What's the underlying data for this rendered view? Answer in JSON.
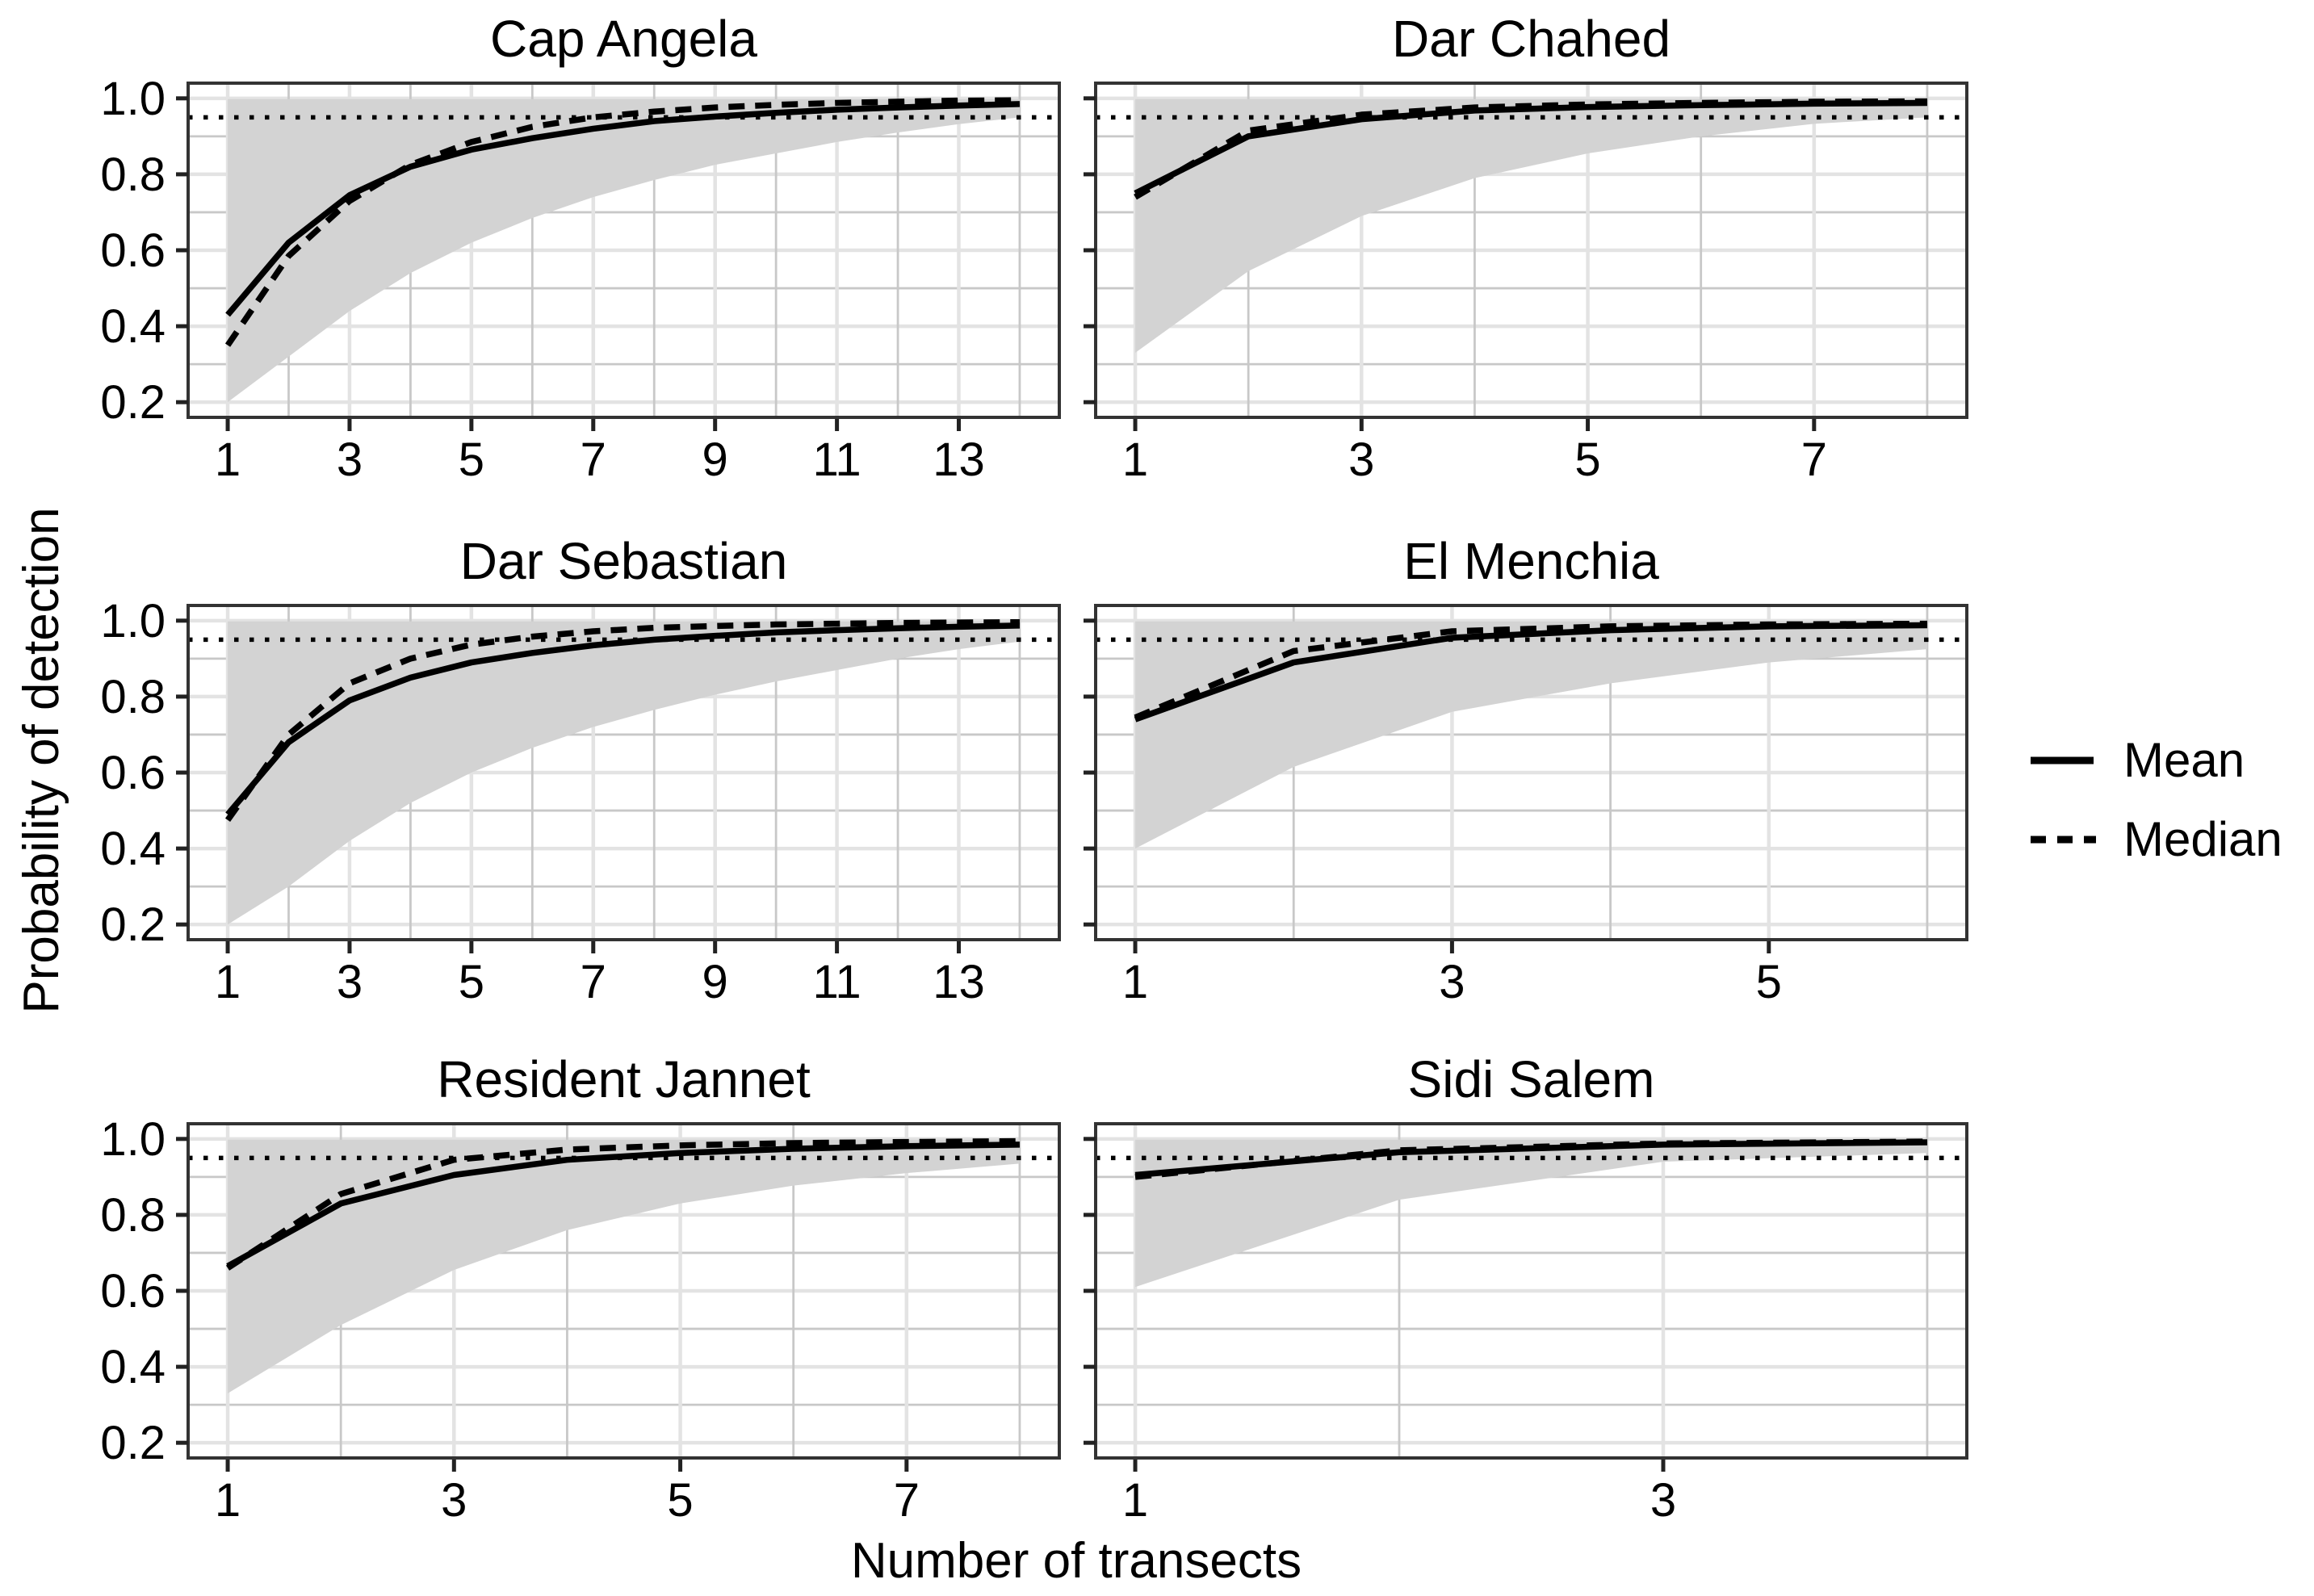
{
  "figure": {
    "y_axis_label": "Probability of detection",
    "x_axis_label": "Number of transects"
  },
  "chart_data": {
    "type": "line",
    "title": "",
    "xlabel": "Number of transects",
    "ylabel": "Probability of detection",
    "ylim": [
      0.16,
      1.04
    ],
    "y_ticks": [
      0.2,
      0.4,
      0.6,
      0.8,
      1.0
    ],
    "y_tick_labels": [
      "0.2",
      "0.4",
      "0.6",
      "0.8",
      "1.0"
    ],
    "grid": "on",
    "reference_line_y": 0.95,
    "reference_line_style": "dotted",
    "legend_position": "right",
    "legend": [
      {
        "label": "Mean",
        "style": "solid"
      },
      {
        "label": "Median",
        "style": "dashed"
      }
    ],
    "ribbon_meaning": "95% interval band",
    "colors": {
      "line": "#000000",
      "ribbon": "#d3d3d3",
      "grid_major": "#e3e3e3",
      "grid_minor": "#c8c8c8",
      "panel_border": "#333333",
      "panel_bg": "#ffffff",
      "text": "#000000"
    },
    "panels": [
      {
        "title": "Cap Angela",
        "x_max": 14,
        "x_ticks": [
          1,
          3,
          5,
          7,
          9,
          11,
          13
        ],
        "x": [
          1,
          2,
          3,
          4,
          5,
          6,
          7,
          8,
          9,
          10,
          11,
          12,
          13,
          14
        ],
        "mean": [
          0.43,
          0.62,
          0.745,
          0.82,
          0.865,
          0.895,
          0.92,
          0.94,
          0.952,
          0.962,
          0.97,
          0.976,
          0.981,
          0.985
        ],
        "median": [
          0.35,
          0.585,
          0.73,
          0.825,
          0.885,
          0.925,
          0.95,
          0.965,
          0.976,
          0.983,
          0.988,
          0.991,
          0.994,
          0.995
        ],
        "lower": [
          0.2,
          0.32,
          0.44,
          0.54,
          0.62,
          0.685,
          0.74,
          0.785,
          0.825,
          0.855,
          0.885,
          0.91,
          0.932,
          0.95
        ],
        "upper": 0.998
      },
      {
        "title": "Dar Chahed",
        "x_max": 8,
        "x_ticks": [
          1,
          3,
          5,
          7
        ],
        "x": [
          1,
          2,
          3,
          4,
          5,
          6,
          7,
          8
        ],
        "mean": [
          0.75,
          0.9,
          0.945,
          0.968,
          0.977,
          0.982,
          0.986,
          0.988
        ],
        "median": [
          0.74,
          0.915,
          0.957,
          0.976,
          0.984,
          0.988,
          0.991,
          0.992
        ],
        "lower": [
          0.33,
          0.545,
          0.69,
          0.79,
          0.855,
          0.9,
          0.933,
          0.95
        ],
        "upper": 0.998
      },
      {
        "title": "Dar Sebastian",
        "x_max": 14,
        "x_ticks": [
          1,
          3,
          5,
          7,
          9,
          11,
          13
        ],
        "x": [
          1,
          2,
          3,
          4,
          5,
          6,
          7,
          8,
          9,
          10,
          11,
          12,
          13,
          14
        ],
        "mean": [
          0.49,
          0.68,
          0.79,
          0.85,
          0.89,
          0.915,
          0.935,
          0.95,
          0.96,
          0.969,
          0.975,
          0.98,
          0.984,
          0.987
        ],
        "median": [
          0.475,
          0.7,
          0.835,
          0.9,
          0.937,
          0.958,
          0.972,
          0.981,
          0.986,
          0.99,
          0.992,
          0.994,
          0.995,
          0.996
        ],
        "lower": [
          0.2,
          0.3,
          0.42,
          0.52,
          0.6,
          0.665,
          0.72,
          0.765,
          0.805,
          0.84,
          0.87,
          0.9,
          0.925,
          0.945
        ],
        "upper": 0.998
      },
      {
        "title": "El Menchia",
        "x_max": 6,
        "x_ticks": [
          1,
          3,
          5
        ],
        "x": [
          1,
          2,
          3,
          4,
          5,
          6
        ],
        "mean": [
          0.74,
          0.89,
          0.955,
          0.975,
          0.985,
          0.988
        ],
        "median": [
          0.745,
          0.92,
          0.972,
          0.985,
          0.99,
          0.992
        ],
        "lower": [
          0.4,
          0.615,
          0.76,
          0.835,
          0.89,
          0.925
        ],
        "upper": 0.998
      },
      {
        "title": "Resident Jannet",
        "x_max": 8,
        "x_ticks": [
          1,
          3,
          5,
          7
        ],
        "x": [
          1,
          2,
          3,
          4,
          5,
          6,
          7,
          8
        ],
        "mean": [
          0.665,
          0.83,
          0.905,
          0.945,
          0.963,
          0.974,
          0.981,
          0.985
        ],
        "median": [
          0.66,
          0.855,
          0.945,
          0.972,
          0.983,
          0.989,
          0.992,
          0.994
        ],
        "lower": [
          0.33,
          0.51,
          0.655,
          0.76,
          0.83,
          0.877,
          0.91,
          0.935
        ],
        "upper": 0.998
      },
      {
        "title": "Sidi Salem",
        "x_max": 4,
        "x_ticks": [
          1,
          3
        ],
        "x": [
          1,
          2,
          3,
          4
        ],
        "mean": [
          0.905,
          0.965,
          0.985,
          0.991
        ],
        "median": [
          0.9,
          0.97,
          0.988,
          0.993
        ],
        "lower": [
          0.61,
          0.84,
          0.94,
          0.963
        ],
        "upper": 0.998
      }
    ]
  }
}
